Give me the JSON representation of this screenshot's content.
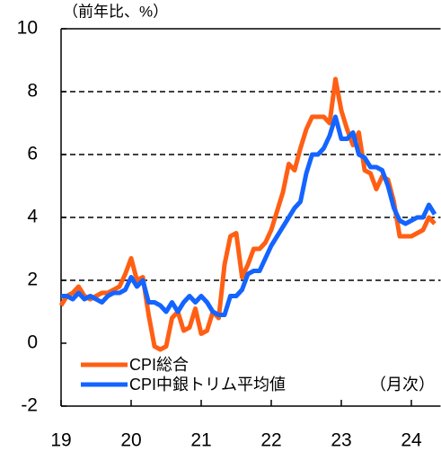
{
  "chart_data": {
    "type": "line",
    "unit_label": "（前年比、%）",
    "annotation": "（月次）",
    "x": [
      0,
      1,
      2,
      3,
      4,
      5,
      6,
      7,
      8,
      9,
      10,
      11,
      12,
      13,
      14,
      15,
      16,
      17,
      18,
      19,
      20,
      21,
      22,
      23,
      24,
      25,
      26,
      27,
      28,
      29,
      30,
      31,
      32,
      33,
      34,
      35,
      36,
      37,
      38,
      39,
      40,
      41,
      42,
      43,
      44,
      45,
      46,
      47,
      48,
      49,
      50,
      51,
      52,
      53,
      54,
      55,
      56,
      57,
      58,
      59,
      60,
      61,
      62,
      63,
      64
    ],
    "series": [
      {
        "name": "CPI総合",
        "color": "#ff5f14",
        "values": [
          1.2,
          1.5,
          1.6,
          1.8,
          1.5,
          1.4,
          1.5,
          1.6,
          1.6,
          1.7,
          1.8,
          2.2,
          2.7,
          2.0,
          2.1,
          0.9,
          -0.1,
          -0.2,
          -0.1,
          0.8,
          1.0,
          0.4,
          0.5,
          1.1,
          0.3,
          0.4,
          1.0,
          0.8,
          2.5,
          3.4,
          3.5,
          2.1,
          2.5,
          3.0,
          3.0,
          3.2,
          3.6,
          4.2,
          4.8,
          5.7,
          5.5,
          6.2,
          6.8,
          7.2,
          7.2,
          7.2,
          7.0,
          8.4,
          7.4,
          6.8,
          6.3,
          6.7,
          5.5,
          5.4,
          4.9,
          5.3,
          5.2,
          4.5,
          3.4,
          3.4,
          3.4,
          3.5,
          3.6,
          4.0,
          3.8
        ]
      },
      {
        "name": "CPI中銀トリム平均値",
        "color": "#1464ff",
        "values": [
          1.5,
          1.5,
          1.4,
          1.6,
          1.4,
          1.5,
          1.4,
          1.3,
          1.5,
          1.6,
          1.6,
          1.7,
          2.1,
          1.8,
          2.0,
          1.3,
          1.3,
          1.2,
          1.0,
          1.3,
          1.0,
          1.3,
          1.5,
          1.3,
          1.5,
          1.3,
          1.0,
          0.9,
          0.9,
          1.5,
          1.5,
          1.7,
          2.2,
          2.3,
          2.3,
          2.7,
          3.1,
          3.4,
          3.7,
          4.0,
          4.3,
          4.5,
          5.4,
          6.0,
          6.0,
          6.2,
          6.6,
          7.2,
          6.5,
          6.5,
          6.7,
          6.0,
          5.9,
          5.6,
          5.6,
          5.5,
          5.0,
          4.3,
          3.9,
          3.8,
          3.9,
          4.0,
          4.0,
          4.4,
          4.1
        ]
      }
    ],
    "xlim": [
      0,
      65
    ],
    "xticks": [
      {
        "value": 0,
        "label": "19"
      },
      {
        "value": 12,
        "label": "20"
      },
      {
        "value": 24,
        "label": "21"
      },
      {
        "value": 36,
        "label": "22"
      },
      {
        "value": 48,
        "label": "23"
      },
      {
        "value": 60,
        "label": "24"
      }
    ],
    "ylim": [
      -2,
      10
    ],
    "yticks": [
      -2,
      0,
      2,
      4,
      6,
      8,
      10
    ],
    "grid_lines": [
      2,
      4,
      6,
      8
    ],
    "grid": true,
    "legend": "bottom-left"
  }
}
